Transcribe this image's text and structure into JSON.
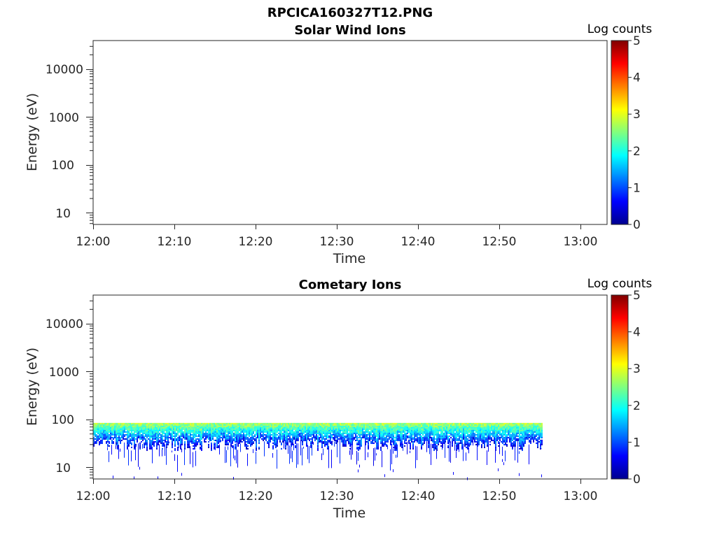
{
  "figure": {
    "title": "RPCICA160327T12.PNG"
  },
  "chart_data": [
    {
      "type": "heatmap",
      "title": "Solar Wind Ions",
      "xlabel": "Time",
      "ylabel": "Energy (eV)",
      "x_ticks": [
        "12:00",
        "12:10",
        "12:20",
        "12:30",
        "12:40",
        "12:50",
        "13:00"
      ],
      "x_range": [
        "12:00",
        "13:03"
      ],
      "y_scale": "log",
      "y_ticks": [
        10,
        100,
        1000,
        10000
      ],
      "y_tick_labels": [
        "10",
        "100",
        "1000",
        "10000"
      ],
      "y_range": [
        6,
        40000
      ],
      "colorbar": {
        "label": "Log counts",
        "range": [
          0,
          5
        ],
        "ticks": [
          "0",
          "1",
          "2",
          "3",
          "4",
          "5"
        ],
        "colormap": "jet"
      },
      "grid": false,
      "data": {
        "time_start": null,
        "time_end": null,
        "energy_min_ev": null,
        "energy_max_ev": null,
        "log_counts_max": null,
        "note_empty": true
      }
    },
    {
      "type": "heatmap",
      "title": "Cometary Ions",
      "xlabel": "Time",
      "ylabel": "Energy (eV)",
      "x_ticks": [
        "12:00",
        "12:10",
        "12:20",
        "12:30",
        "12:40",
        "12:50",
        "13:00"
      ],
      "x_range": [
        "12:00",
        "13:03"
      ],
      "y_scale": "log",
      "y_ticks": [
        10,
        100,
        1000,
        10000
      ],
      "y_tick_labels": [
        "10",
        "100",
        "1000",
        "10000"
      ],
      "y_range": [
        6,
        40000
      ],
      "colorbar": {
        "label": "Log counts",
        "range": [
          0,
          5
        ],
        "ticks": [
          "0",
          "1",
          "2",
          "3",
          "4",
          "5"
        ],
        "colormap": "jet"
      },
      "grid": false,
      "data": {
        "time_start": "12:00",
        "time_end": "12:55",
        "energy_top_ev": 85,
        "dense_band_ev": [
          35,
          85
        ],
        "sparse_floor_ev": 8,
        "log_counts_range": [
          0.5,
          2.7
        ]
      }
    }
  ]
}
